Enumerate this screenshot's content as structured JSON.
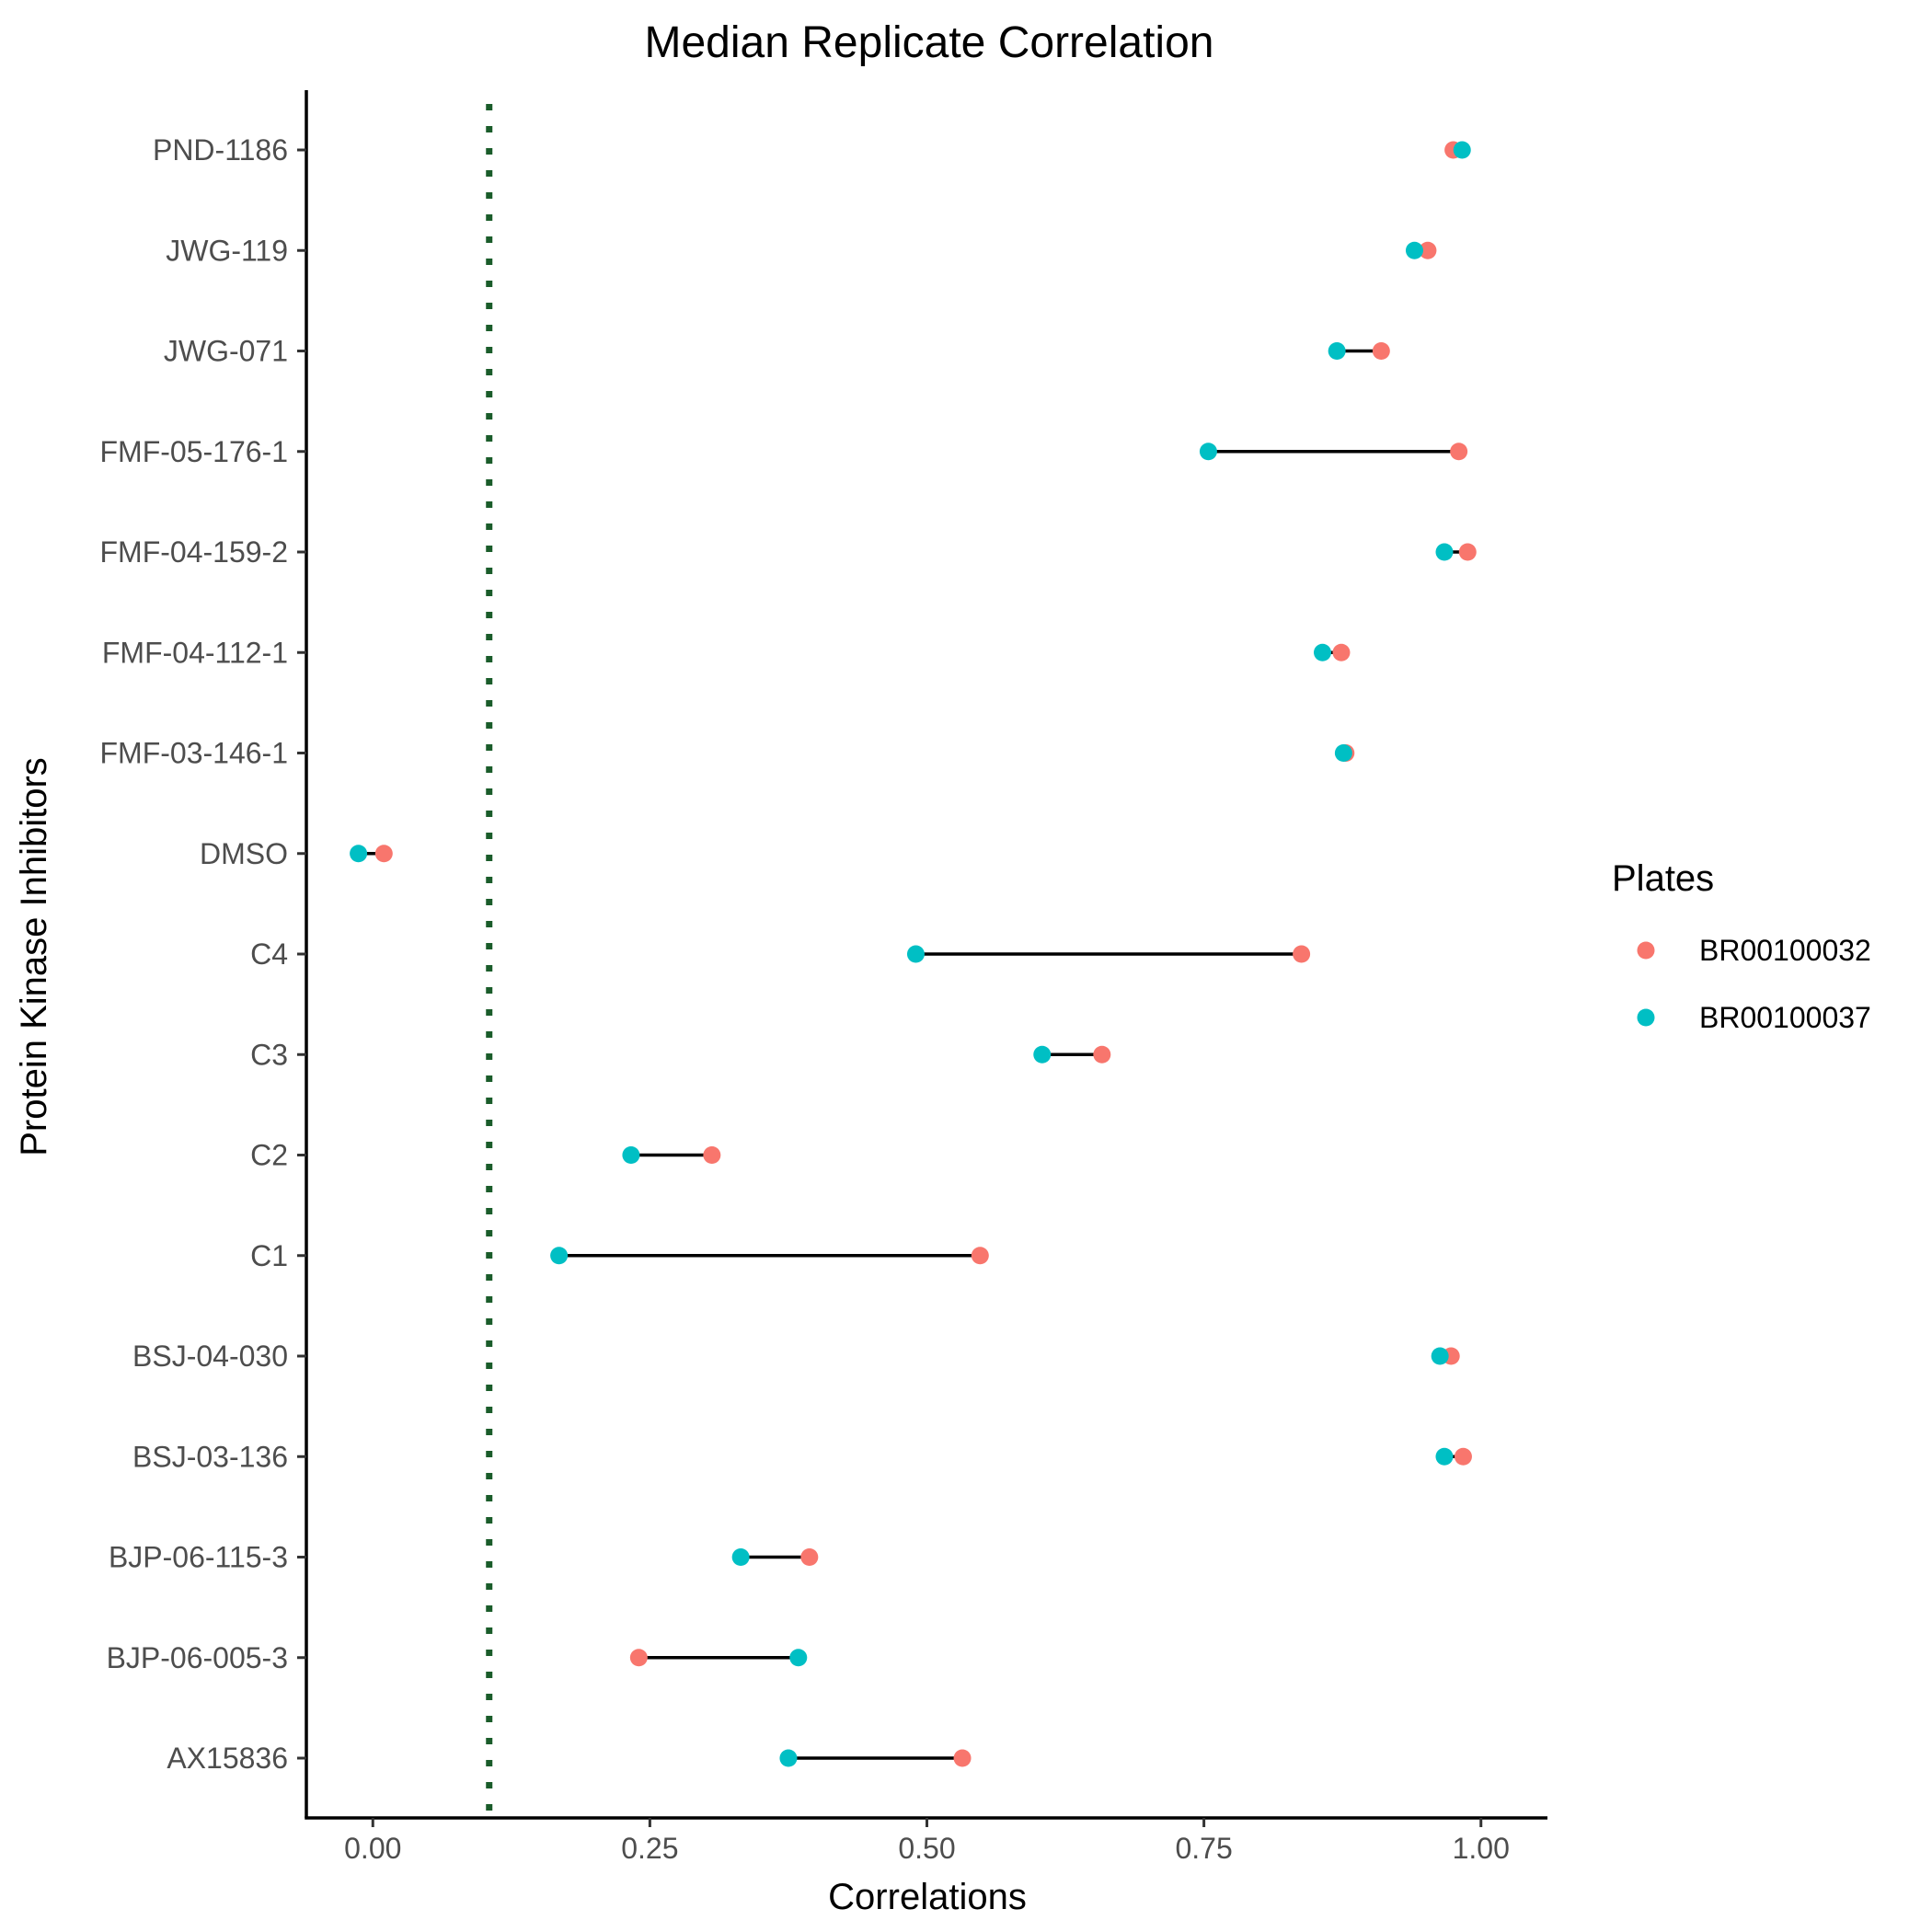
{
  "chart_data": {
    "type": "scatter",
    "title": "Median Replicate Correlation",
    "xlabel": "Correlations",
    "ylabel": "Protein Kinase Inhibitors",
    "xlim": [
      -0.06,
      1.06
    ],
    "xticks": [
      0.0,
      0.25,
      0.5,
      0.75,
      1.0
    ],
    "xtick_labels": [
      "0.00",
      "0.25",
      "0.50",
      "0.75",
      "1.00"
    ],
    "grid": false,
    "legend": {
      "title": "Plates",
      "position": "right"
    },
    "reference_line": {
      "x": 0.105,
      "style": "dotted",
      "color": "#1a5c2a"
    },
    "categories": [
      "PND-1186",
      "JWG-119",
      "JWG-071",
      "FMF-05-176-1",
      "FMF-04-159-2",
      "FMF-04-112-1",
      "FMF-03-146-1",
      "DMSO",
      "C4",
      "C3",
      "C2",
      "C1",
      "BSJ-04-030",
      "BSJ-03-136",
      "BJP-06-115-3",
      "BJP-06-005-3",
      "AX15836"
    ],
    "series": [
      {
        "name": "BR00100032",
        "color": "#F8766D",
        "values": [
          0.975,
          0.952,
          0.91,
          0.98,
          0.988,
          0.874,
          0.878,
          0.01,
          0.838,
          0.658,
          0.306,
          0.548,
          0.973,
          0.984,
          0.394,
          0.24,
          0.532
        ]
      },
      {
        "name": "BR00100037",
        "color": "#00BFC4",
        "values": [
          0.983,
          0.94,
          0.87,
          0.754,
          0.967,
          0.857,
          0.876,
          -0.013,
          0.49,
          0.604,
          0.233,
          0.168,
          0.963,
          0.967,
          0.332,
          0.384,
          0.375
        ]
      }
    ]
  }
}
